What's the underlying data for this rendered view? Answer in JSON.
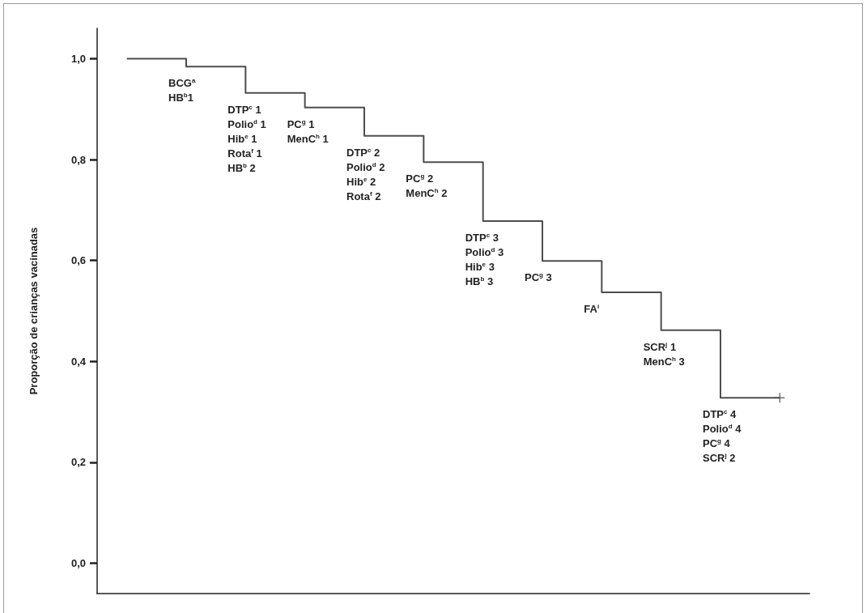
{
  "chart_data": {
    "type": "step",
    "ylabel": "Proporção de crianças vacinadas",
    "categories": [
      null,
      null,
      null,
      null,
      null,
      null,
      null,
      null,
      null,
      null,
      null,
      null
    ],
    "series": [
      {
        "color": "#4d4d4d",
        "marker": "none",
        "values": [
          1.0,
          0.984,
          0.932,
          0.903,
          0.847,
          0.795,
          0.678,
          0.599,
          0.537,
          0.462,
          0.328,
          0.328
        ]
      },
      {
        "type": "scatter",
        "color": "#4d4d4d",
        "marker": "cross",
        "values": [
          null,
          null,
          null,
          null,
          null,
          null,
          null,
          null,
          null,
          null,
          null,
          0.328
        ]
      }
    ],
    "ylim": [
      -0.06,
      1.06
    ],
    "yticks": [
      {
        "value": 0,
        "label": "0,0"
      },
      {
        "value": 0.2,
        "label": "0,2"
      },
      {
        "value": 0.4,
        "label": "0,4"
      },
      {
        "value": 0.6,
        "label": "0,6"
      },
      {
        "value": 0.8,
        "label": "0,8"
      },
      {
        "value": 1,
        "label": "1,0"
      }
    ],
    "grid": false,
    "tick_labels": "y",
    "annotations": [
      "BCG$^{a}$\nHB$^{b}$1",
      "DTP$^{c}$ 1\nPolio$^{d}$ 1\nHib$^{e}$ 1\nRota$^{f}$ 1\nHB$^{b}$ 2",
      "PC$^{g}$ 1\nMenC$^{h}$ 1",
      "DTP$^{c}$ 2\nPolio$^{d}$ 2\nHib$^{e}$ 2\nRota$^{f}$ 2",
      "PC$^{g}$ 2\nMenC$^{h}$ 2",
      "DTP$^{c}$ 3\nPolio$^{d}$ 3\nHib$^{e}$ 3\nHB$^{b}$ 3",
      "PC$^{g}$ 3",
      "FA$^{i}$",
      "SCR$^{j}$ 1\nMenC$^{h}$ 3",
      "DTP$^{c}$ 4\nPolio$^{d}$ 4\nPC$^{g}$ 4\nSCR$^{j}$ 2"
    ]
  }
}
